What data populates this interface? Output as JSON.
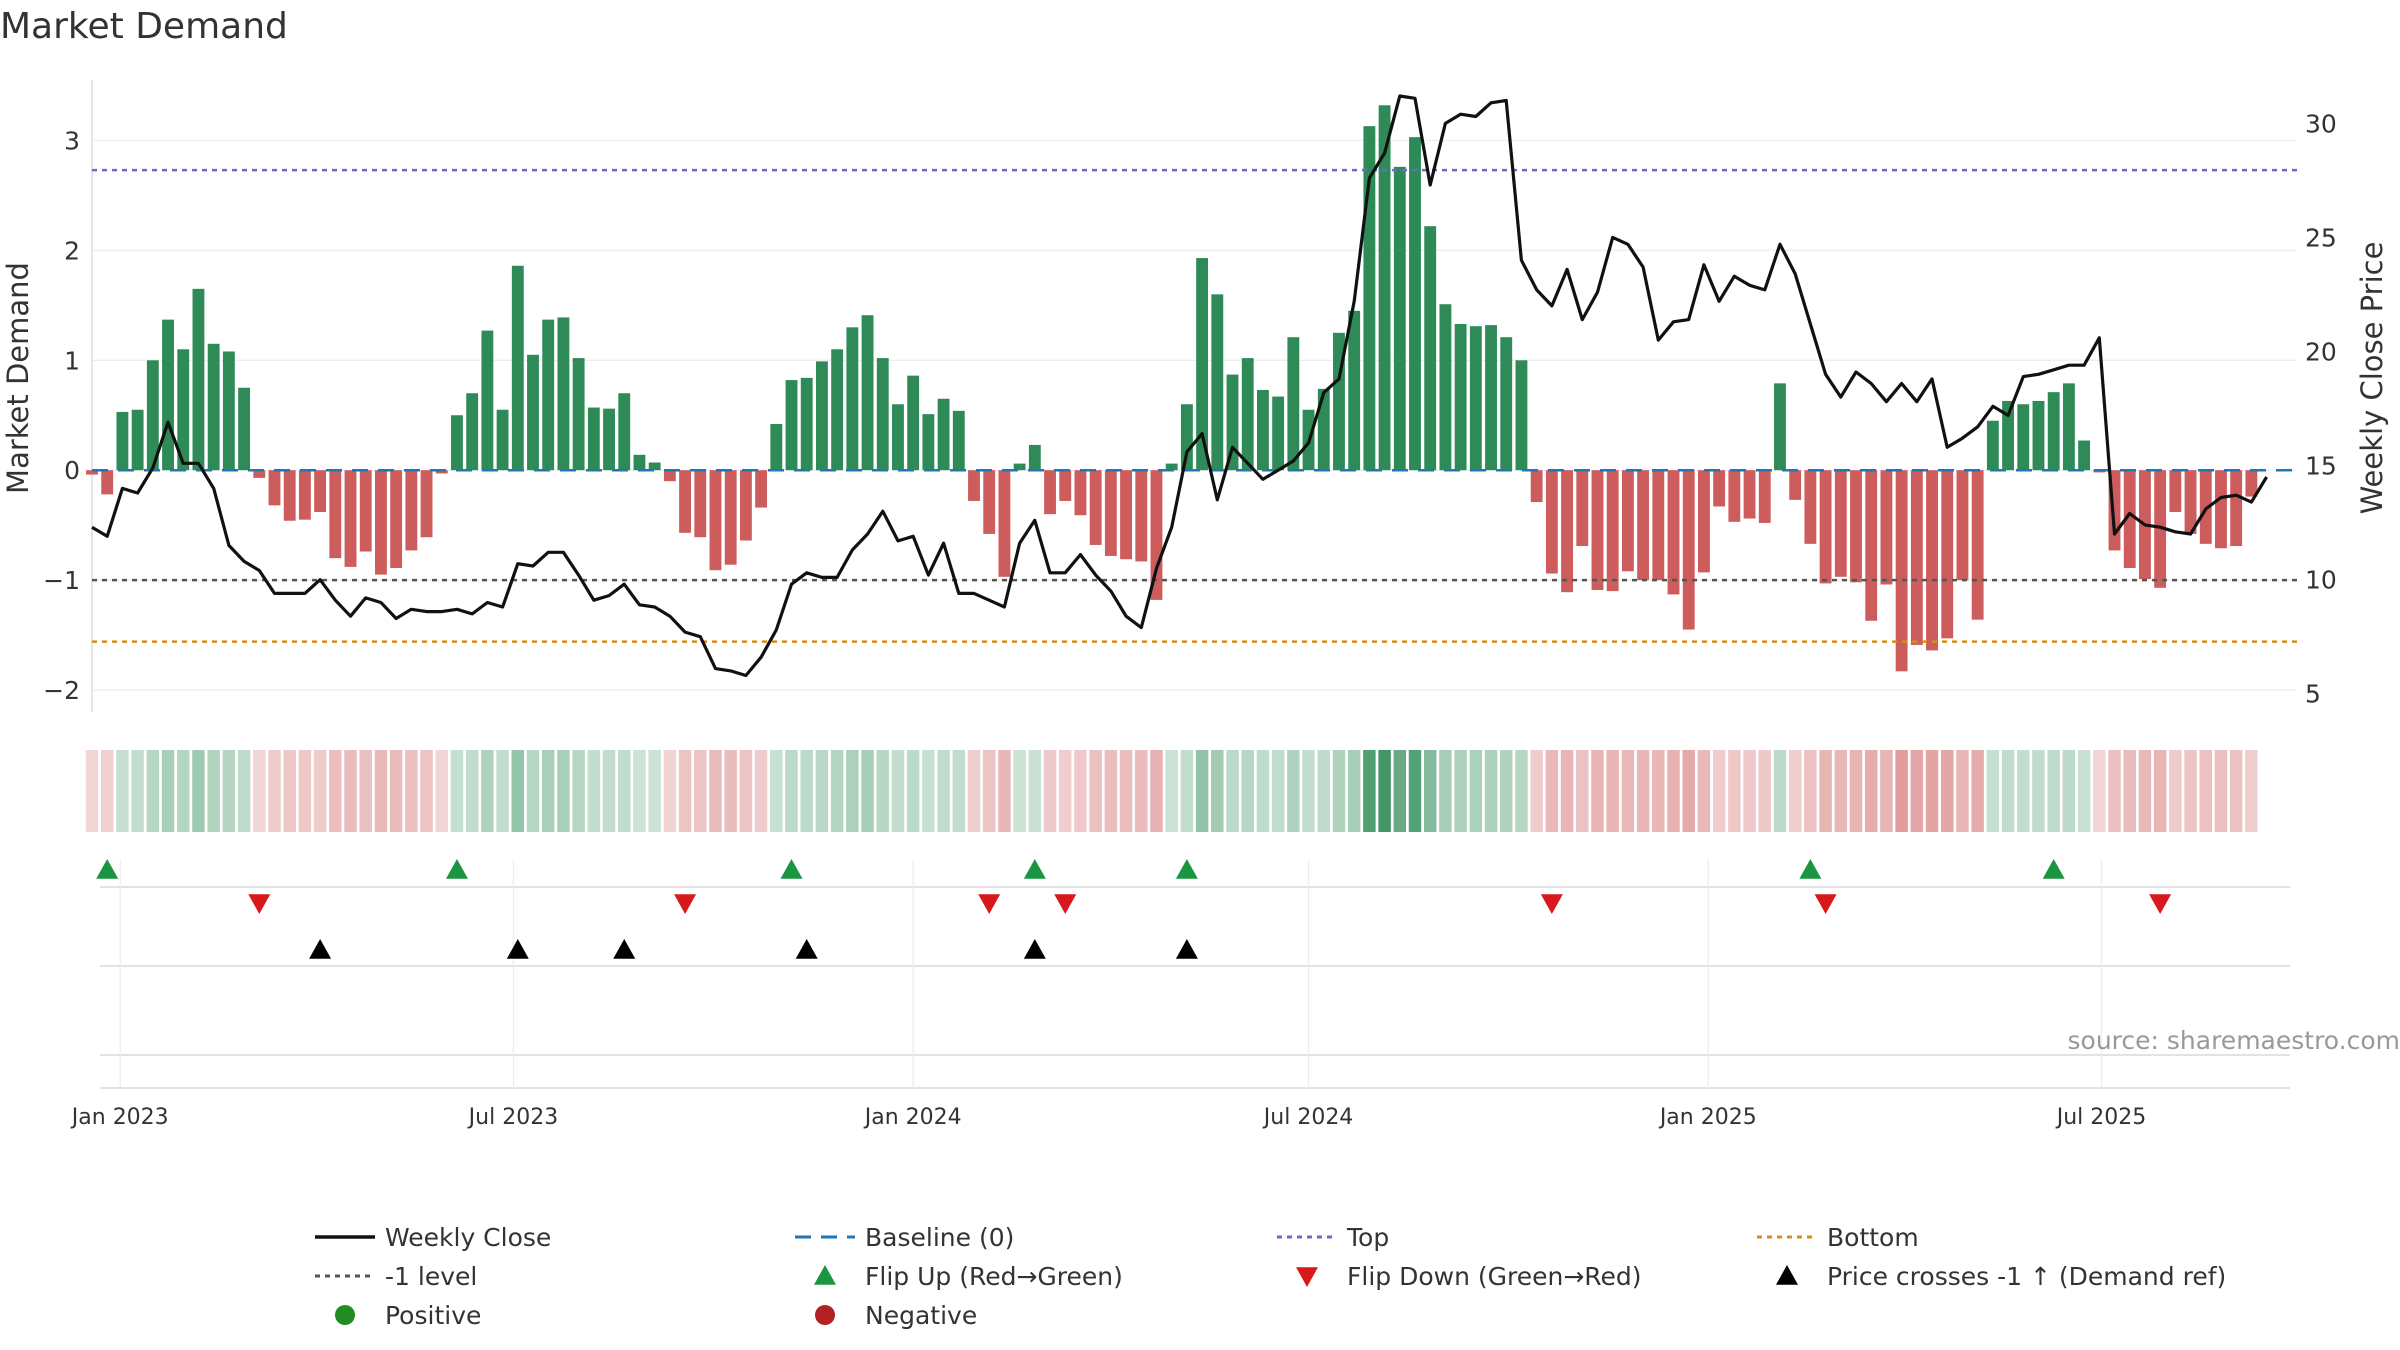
{
  "chart_data": {
    "type": "bar",
    "title": "Market Demand",
    "ylabel": "Market Demand",
    "y2label": "Weekly Close Price",
    "ylim": [
      -2.2,
      3.55
    ],
    "y2lim": [
      4.2,
      31.9
    ],
    "yticks": [
      -2,
      -1,
      0,
      1,
      2,
      3
    ],
    "yticklabels": [
      "−2",
      "−1",
      "0",
      "1",
      "2",
      "3"
    ],
    "y2ticks": [
      5,
      10,
      15,
      20,
      25,
      30
    ],
    "y2ticklabels": [
      "5",
      "10",
      "15",
      "20",
      "25",
      "30"
    ],
    "x_start": "2022-12-19",
    "x_week_start": "2022-12-19",
    "x_end": "2025-09-29",
    "xticks": [
      {
        "label": "Jan 2023",
        "date": "2023-01-01"
      },
      {
        "label": "Jul 2023",
        "date": "2023-07-01"
      },
      {
        "label": "Jan 2024",
        "date": "2024-01-01"
      },
      {
        "label": "Jul 2024",
        "date": "2024-07-01"
      },
      {
        "label": "Jan 2025",
        "date": "2025-01-01"
      },
      {
        "label": "Jul 2025",
        "date": "2025-07-01"
      }
    ],
    "reference_lines": {
      "top": 2.73,
      "minus_one": -1.0,
      "bottom": -1.56,
      "baseline": 0
    },
    "demand_values": [
      -0.04,
      -0.22,
      0.53,
      0.55,
      1.0,
      1.37,
      1.1,
      1.65,
      1.15,
      1.08,
      0.75,
      -0.07,
      -0.32,
      -0.46,
      -0.45,
      -0.38,
      -0.8,
      -0.88,
      -0.74,
      -0.95,
      -0.89,
      -0.73,
      -0.61,
      -0.03,
      0.5,
      0.7,
      1.27,
      0.55,
      1.86,
      1.05,
      1.37,
      1.39,
      1.02,
      0.57,
      0.56,
      0.7,
      0.14,
      0.07,
      -0.1,
      -0.57,
      -0.61,
      -0.91,
      -0.86,
      -0.64,
      -0.34,
      0.42,
      0.82,
      0.84,
      0.99,
      1.1,
      1.3,
      1.41,
      1.02,
      0.6,
      0.86,
      0.51,
      0.65,
      0.54,
      -0.28,
      -0.58,
      -0.97,
      0.06,
      0.23,
      -0.4,
      -0.28,
      -0.41,
      -0.68,
      -0.78,
      -0.81,
      -0.83,
      -1.18,
      0.06,
      0.6,
      1.93,
      1.6,
      0.87,
      1.02,
      0.73,
      0.67,
      1.21,
      0.55,
      0.74,
      1.25,
      1.45,
      3.13,
      3.32,
      2.76,
      3.03,
      2.22,
      1.51,
      1.33,
      1.31,
      1.32,
      1.21,
      1.0,
      -0.29,
      -0.94,
      -1.11,
      -0.69,
      -1.09,
      -1.1,
      -0.92,
      -1.0,
      -1.0,
      -1.13,
      -1.45,
      -0.93,
      -0.33,
      -0.47,
      -0.44,
      -0.48,
      0.79,
      -0.27,
      -0.67,
      -1.03,
      -0.97,
      -1.02,
      -1.37,
      -1.04,
      -1.83,
      -1.59,
      -1.64,
      -1.53,
      -1.0,
      -1.36,
      0.45,
      0.63,
      0.6,
      0.63,
      0.71,
      0.79,
      0.27,
      -0.02,
      -0.73,
      -0.89,
      -0.99,
      -1.07,
      -0.38,
      -0.58,
      -0.67,
      -0.71,
      -0.69,
      -0.24
    ],
    "price_values": [
      12.3,
      11.9,
      14.0,
      13.8,
      14.9,
      16.9,
      15.1,
      15.1,
      14.0,
      11.5,
      10.8,
      10.4,
      9.4,
      9.4,
      9.4,
      10.0,
      9.1,
      8.4,
      9.2,
      9.0,
      8.3,
      8.7,
      8.6,
      8.6,
      8.7,
      8.5,
      9.0,
      8.8,
      10.7,
      10.6,
      11.2,
      11.2,
      10.2,
      9.1,
      9.3,
      9.8,
      8.9,
      8.8,
      8.4,
      7.7,
      7.5,
      6.1,
      6.0,
      5.8,
      6.6,
      7.8,
      9.8,
      10.3,
      10.1,
      10.1,
      11.3,
      12.0,
      13.0,
      11.7,
      11.9,
      10.2,
      11.6,
      9.4,
      9.4,
      9.1,
      8.8,
      11.6,
      12.6,
      10.3,
      10.3,
      11.1,
      10.2,
      9.5,
      8.4,
      7.9,
      10.5,
      12.3,
      15.6,
      16.4,
      13.5,
      15.8,
      15.1,
      14.4,
      14.8,
      15.2,
      16.0,
      18.2,
      18.8,
      22.2,
      27.6,
      28.7,
      31.2,
      31.1,
      27.3,
      30.0,
      30.4,
      30.3,
      30.9,
      31.0,
      24.0,
      22.7,
      22.0,
      23.6,
      21.4,
      22.6,
      25.0,
      24.7,
      23.7,
      20.5,
      21.3,
      21.4,
      23.8,
      22.2,
      23.3,
      22.9,
      22.7,
      24.7,
      23.4,
      21.2,
      19.0,
      18.0,
      19.1,
      18.6,
      17.8,
      18.6,
      17.8,
      18.8,
      15.8,
      16.2,
      16.7,
      17.6,
      17.2,
      18.9,
      19.0,
      19.2,
      19.4,
      19.4,
      20.6,
      12.0,
      12.9,
      12.4,
      12.3,
      12.1,
      12.0,
      13.1,
      13.6,
      13.7,
      13.4,
      14.5
    ],
    "strip_alpha_positive": [
      0.4,
      0.45,
      0.5,
      0.55,
      0.6,
      0.65,
      0.7,
      1.0
    ],
    "markers": {
      "flip_up": [
        1,
        24,
        46,
        62,
        72,
        113,
        129
      ],
      "flip_down": [
        11,
        39,
        59,
        64,
        96,
        114,
        136
      ],
      "price_cross_up": [
        15,
        28,
        35,
        47,
        62,
        72
      ]
    },
    "colors": {
      "positive_bar": "#2e8b57",
      "negative_bar": "#cd5c5c",
      "strip_positive": "#2e8b57",
      "strip_negative": "#cd5c5c",
      "price_line": "#111111",
      "baseline": "#1f77b4",
      "top": "#6b6bcc",
      "minus_one": "#555555",
      "bottom": "#d98c1a",
      "flip_up": "#1a9641",
      "flip_down": "#d7191c",
      "price_cross": "#000000",
      "positive_dot": "#228b22",
      "negative_dot": "#b22222"
    },
    "legend": [
      {
        "label": "Weekly Close",
        "symbol": "line",
        "color": "#111111"
      },
      {
        "label": "Baseline (0)",
        "symbol": "dashed",
        "color": "#1f77b4"
      },
      {
        "label": "Top",
        "symbol": "dotted",
        "color": "#6b6bcc"
      },
      {
        "label": "Bottom",
        "symbol": "dotted",
        "color": "#d98c1a"
      },
      {
        "label": "-1 level",
        "symbol": "dotted",
        "color": "#555555"
      },
      {
        "label": "Flip Up (Red→Green)",
        "symbol": "tri-up",
        "color": "#1a9641"
      },
      {
        "label": "Flip Down (Green→Red)",
        "symbol": "tri-down",
        "color": "#d7191c"
      },
      {
        "label": "Price crosses -1 ↑ (Demand ref)",
        "symbol": "tri-up",
        "color": "#000000"
      },
      {
        "label": "Positive",
        "symbol": "dot",
        "color": "#228b22"
      },
      {
        "label": "Negative",
        "symbol": "dot",
        "color": "#b22222"
      }
    ],
    "legend_position": "bottom",
    "annotation": "source: sharemaestro.com"
  }
}
